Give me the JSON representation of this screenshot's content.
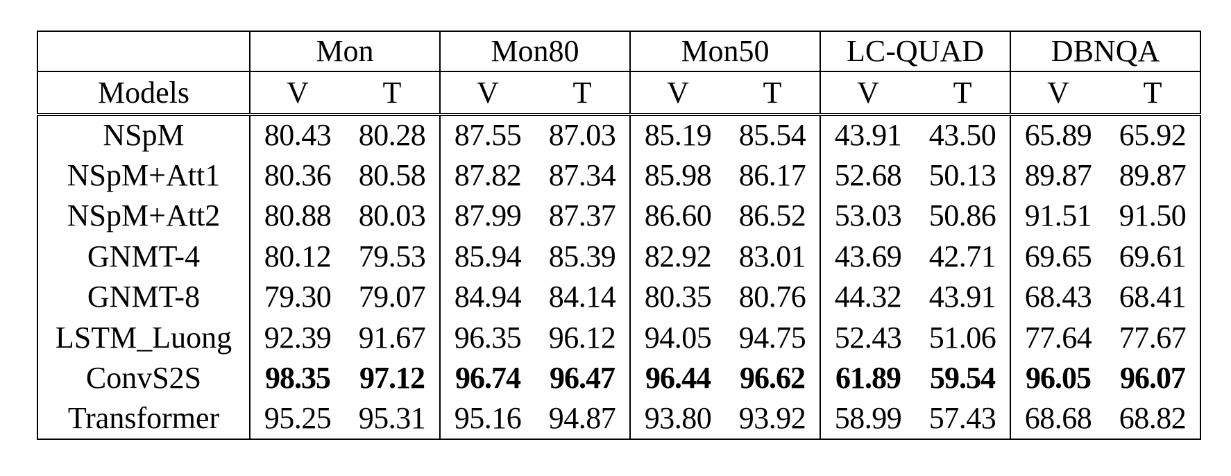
{
  "table": {
    "corner": "",
    "models_header": "Models",
    "datasets": [
      "Mon",
      "Mon80",
      "Mon50",
      "LC-QUAD",
      "DBNQA"
    ],
    "sub_headers": [
      "V",
      "T"
    ],
    "rows": [
      {
        "model": "NSpM",
        "values": [
          "80.43",
          "80.28",
          "87.55",
          "87.03",
          "85.19",
          "85.54",
          "43.91",
          "43.50",
          "65.89",
          "65.92"
        ],
        "bold": false
      },
      {
        "model": "NSpM+Att1",
        "values": [
          "80.36",
          "80.58",
          "87.82",
          "87.34",
          "85.98",
          "86.17",
          "52.68",
          "50.13",
          "89.87",
          "89.87"
        ],
        "bold": false
      },
      {
        "model": "NSpM+Att2",
        "values": [
          "80.88",
          "80.03",
          "87.99",
          "87.37",
          "86.60",
          "86.52",
          "53.03",
          "50.86",
          "91.51",
          "91.50"
        ],
        "bold": false
      },
      {
        "model": "GNMT-4",
        "values": [
          "80.12",
          "79.53",
          "85.94",
          "85.39",
          "82.92",
          "83.01",
          "43.69",
          "42.71",
          "69.65",
          "69.61"
        ],
        "bold": false
      },
      {
        "model": "GNMT-8",
        "values": [
          "79.30",
          "79.07",
          "84.94",
          "84.14",
          "80.35",
          "80.76",
          "44.32",
          "43.91",
          "68.43",
          "68.41"
        ],
        "bold": false
      },
      {
        "model": "LSTM_Luong",
        "values": [
          "92.39",
          "91.67",
          "96.35",
          "96.12",
          "94.05",
          "94.75",
          "52.43",
          "51.06",
          "77.64",
          "77.67"
        ],
        "bold": false
      },
      {
        "model": "ConvS2S",
        "values": [
          "98.35",
          "97.12",
          "96.74",
          "96.47",
          "96.44",
          "96.62",
          "61.89",
          "59.54",
          "96.05",
          "96.07"
        ],
        "bold": true
      },
      {
        "model": "Transformer",
        "values": [
          "95.25",
          "95.31",
          "95.16",
          "94.87",
          "93.80",
          "93.92",
          "58.99",
          "57.43",
          "68.68",
          "68.82"
        ],
        "bold": false
      }
    ]
  }
}
